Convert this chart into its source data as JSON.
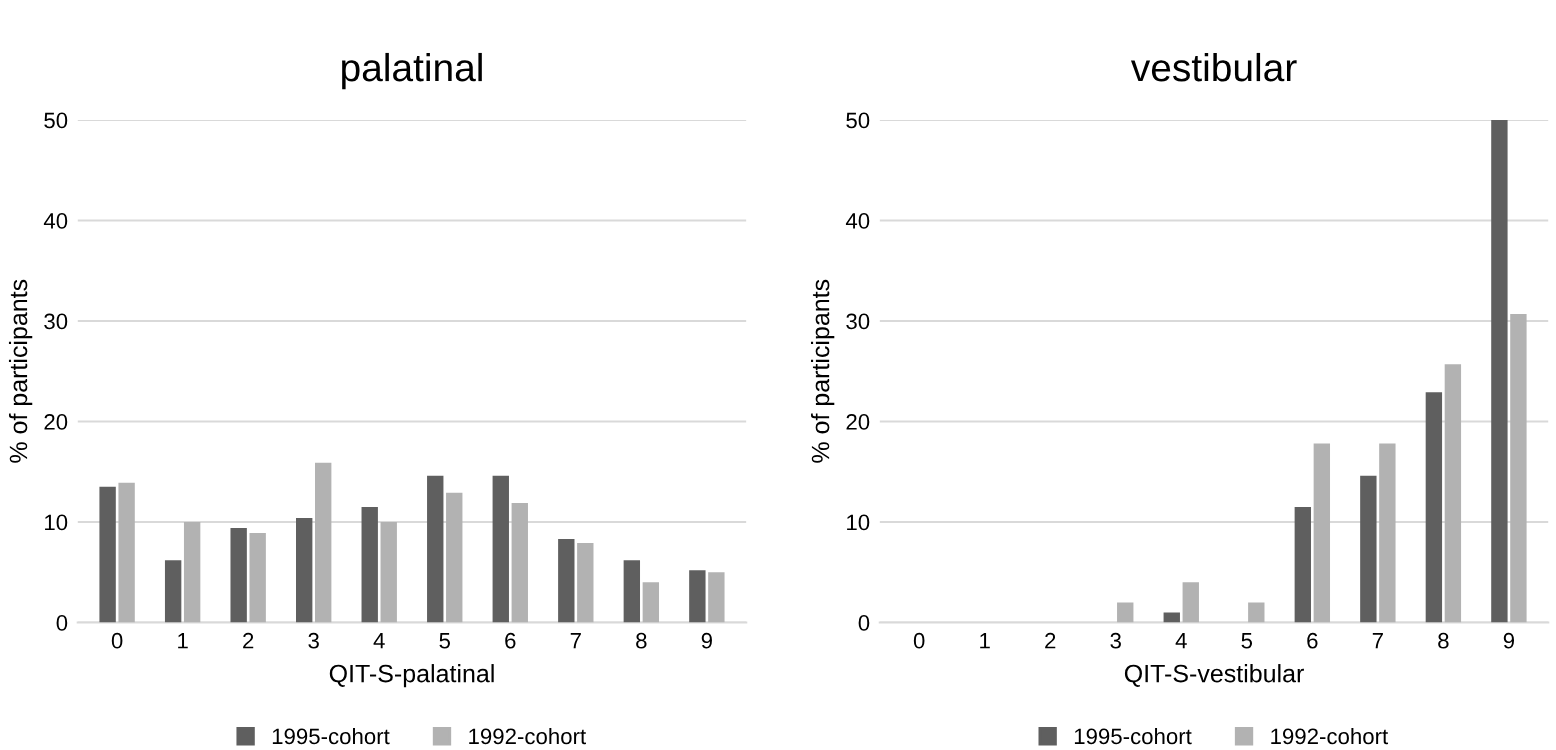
{
  "chart_data": [
    {
      "type": "bar",
      "title": "palatinal",
      "xlabel": "QIT-S-palatinal",
      "ylabel": "% of participants",
      "categories": [
        "0",
        "1",
        "2",
        "3",
        "4",
        "5",
        "6",
        "7",
        "8",
        "9"
      ],
      "series": [
        {
          "name": "1995-cohort",
          "color": "#5f5f5f",
          "values": [
            13.5,
            6.2,
            9.4,
            10.4,
            11.5,
            14.6,
            14.6,
            8.3,
            6.2,
            5.2
          ]
        },
        {
          "name": "1992-cohort",
          "color": "#b2b2b2",
          "values": [
            13.9,
            10,
            8.9,
            15.9,
            10,
            12.9,
            11.9,
            7.9,
            4,
            5
          ]
        }
      ],
      "ylim": [
        0,
        50
      ],
      "yticks": [
        0,
        10,
        20,
        30,
        40,
        50
      ],
      "grid": "y",
      "legend": "bottom"
    },
    {
      "type": "bar",
      "title": "vestibular",
      "xlabel": "QIT-S-vestibular",
      "ylabel": "% of participants",
      "categories": [
        "0",
        "1",
        "2",
        "3",
        "4",
        "5",
        "6",
        "7",
        "8",
        "9"
      ],
      "series": [
        {
          "name": "1995-cohort",
          "color": "#5f5f5f",
          "values": [
            0,
            0,
            0,
            0,
            1.0,
            0,
            11.5,
            14.6,
            22.9,
            50
          ]
        },
        {
          "name": "1992-cohort",
          "color": "#b2b2b2",
          "values": [
            0,
            0,
            0,
            2,
            4,
            2,
            17.8,
            17.8,
            25.7,
            30.7
          ]
        }
      ],
      "ylim": [
        0,
        50
      ],
      "yticks": [
        0,
        10,
        20,
        30,
        40,
        50
      ],
      "grid": "y",
      "legend": "bottom"
    }
  ]
}
